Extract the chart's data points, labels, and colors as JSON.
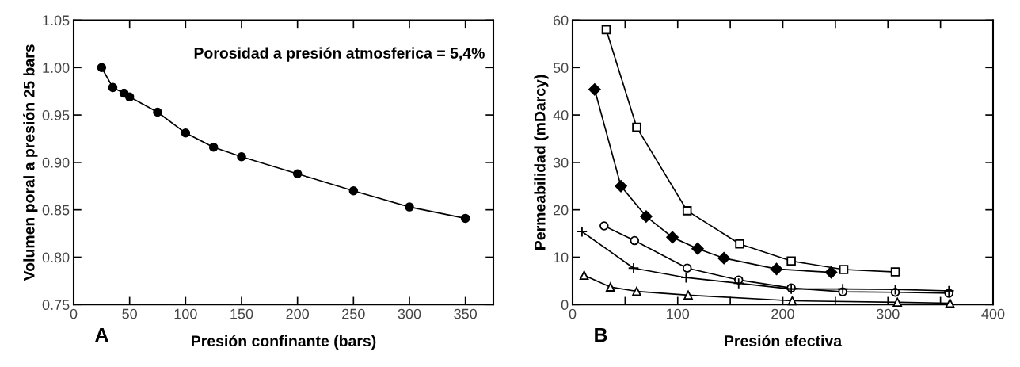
{
  "chart_data": [
    {
      "type": "line",
      "xlabel": "Presión confinante (bars)",
      "ylabel": "Volumen poral a presión 25 bars",
      "annotations": [
        "Porosidad a presión atmosferica = 5,4%",
        "A"
      ],
      "x": [
        25,
        35,
        45,
        50,
        75,
        100,
        125,
        150,
        200,
        250,
        300,
        350
      ],
      "series": [
        {
          "color": "#000000",
          "marker": "circle",
          "values": [
            1.0,
            0.979,
            0.973,
            0.969,
            0.953,
            0.931,
            0.916,
            0.906,
            0.888,
            0.87,
            0.853,
            0.841
          ]
        }
      ],
      "xlim": [
        0,
        375
      ],
      "xticks": [
        0,
        50,
        100,
        150,
        200,
        250,
        300,
        350
      ],
      "ylim": [
        0.75,
        1.05
      ],
      "yticks": [
        {
          "value": 0.75,
          "label": "0.75"
        },
        {
          "value": 0.8,
          "label": "0.80"
        },
        {
          "value": 0.85,
          "label": "0.85"
        },
        {
          "value": 0.9,
          "label": "0.90"
        },
        {
          "value": 0.95,
          "label": "0.95"
        },
        {
          "value": 1.0,
          "label": "1.00"
        },
        {
          "value": 1.05,
          "label": "1.05"
        }
      ],
      "grid": false,
      "legend": false
    },
    {
      "type": "line",
      "xlabel": "Presión efectiva",
      "ylabel": "Permeabilidad (mDarcy)",
      "annotations": [
        "B"
      ],
      "series": [
        {
          "color": "#000000",
          "marker": "square",
          "x": [
            32,
            61,
            109,
            159,
            208,
            258,
            307
          ],
          "values": [
            58,
            37.4,
            19.8,
            12.8,
            9.2,
            7.4,
            6.9
          ]
        },
        {
          "color": "#000000",
          "marker": "diamond",
          "x": [
            21,
            46,
            70,
            95,
            119,
            144,
            194,
            246
          ],
          "values": [
            45.4,
            25,
            18.6,
            14.2,
            11.8,
            9.8,
            7.5,
            6.8
          ]
        },
        {
          "color": "#000000",
          "marker": "circle",
          "x": [
            30,
            59,
            109,
            158,
            208,
            257,
            307,
            358
          ],
          "values": [
            16.6,
            13.5,
            7.7,
            5.2,
            3.5,
            2.7,
            2.6,
            2.4
          ]
        },
        {
          "color": "#000000",
          "marker": "cross",
          "x": [
            9,
            58,
            108,
            158,
            208,
            257,
            307,
            358
          ],
          "values": [
            15.4,
            7.7,
            5.7,
            4.5,
            3.3,
            3.3,
            3.2,
            2.9
          ]
        },
        {
          "color": "#000000",
          "marker": "triangle",
          "x": [
            11,
            36,
            61,
            110,
            209,
            309,
            359
          ],
          "values": [
            6.2,
            3.7,
            2.8,
            2.0,
            0.8,
            0.5,
            0.3
          ]
        }
      ],
      "xlim": [
        0,
        400
      ],
      "xticks": [
        0,
        {
          "value": 50,
          "label": null
        },
        100,
        {
          "value": 150,
          "label": null
        },
        200,
        {
          "value": 250,
          "label": null
        },
        300,
        {
          "value": 350,
          "label": null
        },
        400
      ],
      "ylim": [
        0,
        60
      ],
      "yticks": [
        0,
        10,
        20,
        30,
        40,
        50,
        60
      ],
      "grid": false,
      "legend": false
    }
  ]
}
